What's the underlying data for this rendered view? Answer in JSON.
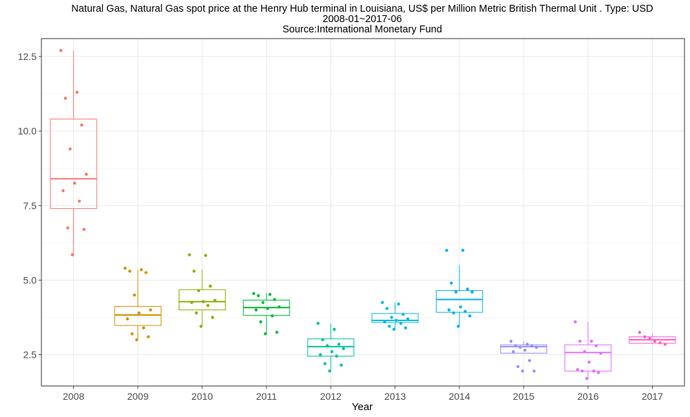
{
  "chart_data": {
    "type": "boxplot",
    "title_lines": [
      "Natural Gas, Natural Gas spot price at the Henry Hub terminal in Louisiana, US$ per Million Metric British Thermal Unit . Type: USD",
      "2008-01~2017-06",
      "Source:International Monetary Fund"
    ],
    "xlabel": "Year",
    "ylabel": "",
    "ylim": [
      1.45,
      13.1
    ],
    "yticks": [
      {
        "value": 2.5,
        "label": "2.5"
      },
      {
        "value": 5.0,
        "label": "5.0"
      },
      {
        "value": 7.5,
        "label": "7.5"
      },
      {
        "value": 10.0,
        "label": "10.0"
      },
      {
        "value": 12.5,
        "label": "12.5"
      }
    ],
    "grid": true,
    "legend": "none",
    "categories": [
      "2008",
      "2009",
      "2010",
      "2011",
      "2012",
      "2013",
      "2014",
      "2015",
      "2016",
      "2017"
    ],
    "groups": [
      {
        "year": "2008",
        "color": "#F8766D",
        "box": {
          "min": 5.85,
          "q1": 7.4,
          "median": 8.4,
          "q3": 10.4,
          "max": 12.7
        },
        "points": [
          12.7,
          11.3,
          11.1,
          10.2,
          9.4,
          8.55,
          8.25,
          8.0,
          7.65,
          6.75,
          6.7,
          5.85
        ]
      },
      {
        "year": "2009",
        "color": "#D39200",
        "box": {
          "min": 3.0,
          "q1": 3.48,
          "median": 3.83,
          "q3": 4.12,
          "max": 5.35
        },
        "points": [
          5.4,
          5.35,
          5.3,
          5.25,
          4.5,
          4.0,
          3.9,
          3.7,
          3.4,
          3.2,
          3.1,
          3.0
        ]
      },
      {
        "year": "2010",
        "color": "#93AA00",
        "box": {
          "min": 3.45,
          "q1": 4.0,
          "median": 4.28,
          "q3": 4.68,
          "max": 5.35
        },
        "points": [
          5.85,
          5.83,
          5.3,
          4.8,
          4.65,
          4.32,
          4.28,
          4.25,
          4.15,
          3.9,
          3.75,
          3.45
        ]
      },
      {
        "year": "2011",
        "color": "#00BA38",
        "box": {
          "min": 3.2,
          "q1": 3.82,
          "median": 4.08,
          "q3": 4.33,
          "max": 4.56
        },
        "points": [
          4.55,
          4.52,
          4.48,
          4.35,
          4.25,
          4.1,
          4.05,
          4.0,
          3.8,
          3.6,
          3.25,
          3.2
        ]
      },
      {
        "year": "2012",
        "color": "#00C19F",
        "box": {
          "min": 1.95,
          "q1": 2.45,
          "median": 2.77,
          "q3": 3.03,
          "max": 3.55
        },
        "points": [
          3.55,
          3.35,
          3.0,
          2.85,
          2.8,
          2.7,
          2.6,
          2.5,
          2.45,
          2.2,
          2.15,
          1.95
        ]
      },
      {
        "year": "2013",
        "color": "#00B9E3",
        "box": {
          "min": 3.35,
          "q1": 3.58,
          "median": 3.65,
          "q3": 3.88,
          "max": 4.25
        },
        "points": [
          4.25,
          4.2,
          4.05,
          3.85,
          3.75,
          3.7,
          3.65,
          3.6,
          3.55,
          3.45,
          3.4,
          3.35
        ]
      },
      {
        "year": "2014",
        "color": "#00ADFA",
        "box": {
          "min": 3.45,
          "q1": 3.92,
          "median": 4.35,
          "q3": 4.65,
          "max": 5.5
        },
        "points": [
          6.0,
          6.0,
          4.9,
          4.7,
          4.6,
          4.6,
          4.1,
          4.0,
          3.95,
          3.9,
          3.8,
          3.45
        ]
      },
      {
        "year": "2015",
        "color": "#9590FF",
        "box": {
          "min": 2.55,
          "q1": 2.55,
          "median": 2.77,
          "q3": 2.83,
          "max": 2.95
        },
        "points": [
          2.95,
          2.85,
          2.8,
          2.8,
          2.75,
          2.75,
          2.65,
          2.6,
          2.3,
          2.1,
          1.95,
          1.95
        ]
      },
      {
        "year": "2016",
        "color": "#DB72FB",
        "box": {
          "min": 1.7,
          "q1": 1.95,
          "median": 2.57,
          "q3": 2.83,
          "max": 3.6
        },
        "points": [
          3.6,
          2.95,
          2.95,
          2.8,
          2.6,
          2.55,
          2.25,
          2.0,
          1.95,
          1.95,
          1.9,
          1.7
        ]
      },
      {
        "year": "2017",
        "color": "#FF61C3",
        "box": {
          "min": 2.85,
          "q1": 2.88,
          "median": 3.0,
          "q3": 3.1,
          "max": 3.2
        },
        "points": [
          3.25,
          3.1,
          3.05,
          2.95,
          2.9,
          2.85
        ]
      }
    ]
  }
}
